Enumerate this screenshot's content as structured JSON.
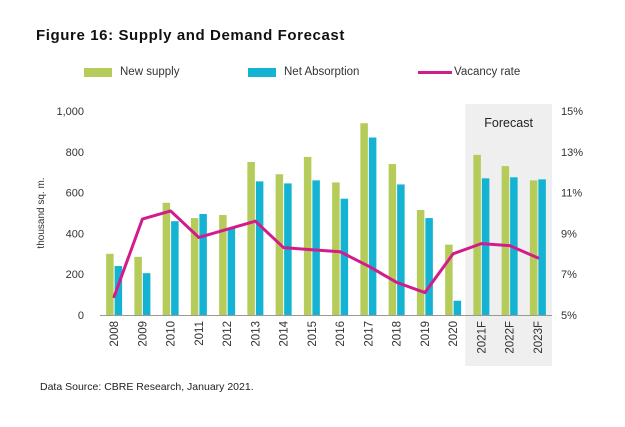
{
  "title": "Figure 16: Supply and Demand Forecast",
  "source": "Data Source: CBRE Research, January 2021.",
  "forecast_label": "Forecast",
  "colors": {
    "new_supply": "#b5cc5a",
    "net_absorption": "#14b3d3",
    "vacancy": "#d31c8c",
    "forecast_bg": "#efefef"
  },
  "chart_data": {
    "type": "bar",
    "title": "Figure 16: Supply and Demand Forecast",
    "xlabel": "",
    "ylabel": "thousand sq. m.",
    "ylim": [
      0,
      1000
    ],
    "y_ticks": [
      "0",
      "200",
      "400",
      "600",
      "800",
      "1,000"
    ],
    "y2_ticks": [
      "5%",
      "7%",
      "9%",
      "11%",
      "13%",
      "15%"
    ],
    "y2lim": [
      5,
      15
    ],
    "categories": [
      "2008",
      "2009",
      "2010",
      "2011",
      "2012",
      "2013",
      "2014",
      "2015",
      "2016",
      "2017",
      "2018",
      "2019",
      "2020",
      "2021F",
      "2022F",
      "2023F"
    ],
    "series": [
      {
        "name": "New supply",
        "type": "bar",
        "values": [
          300,
          285,
          550,
          475,
          490,
          750,
          690,
          775,
          650,
          940,
          740,
          515,
          345,
          785,
          730,
          660
        ]
      },
      {
        "name": "Net Absorption",
        "type": "bar",
        "values": [
          240,
          205,
          460,
          495,
          425,
          655,
          645,
          660,
          570,
          870,
          640,
          475,
          70,
          670,
          675,
          665
        ]
      },
      {
        "name": "Vacancy rate",
        "type": "line",
        "axis": "right",
        "values": [
          5.9,
          9.7,
          10.1,
          8.8,
          9.2,
          9.6,
          8.3,
          8.2,
          8.1,
          7.4,
          6.6,
          6.1,
          8.0,
          8.5,
          8.4,
          7.8
        ]
      }
    ],
    "forecast_categories": [
      "2021F",
      "2022F",
      "2023F"
    ],
    "grid": false
  }
}
